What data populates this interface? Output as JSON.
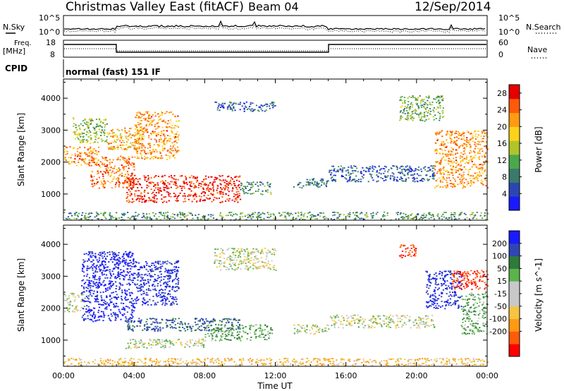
{
  "header": {
    "station": "Christmas Valley East (fitACF)",
    "beam": "Beam 04",
    "date": "12/Sep/2014"
  },
  "noise_panel": {
    "left_label": "N.Sky",
    "right_label": "N.Search",
    "left_ticks": [
      "10^5",
      "10^0"
    ],
    "right_ticks": [
      "10^5",
      "10^0"
    ]
  },
  "freq_panel": {
    "left_label_1": "Freq.",
    "left_label_2": "[MHz]",
    "right_label": "Nave",
    "left_ticks": [
      "18",
      "8"
    ],
    "right_ticks": [
      "60",
      "0"
    ]
  },
  "cpid_panel": {
    "label": "CPID",
    "mode": "normal (fast) 151 IF"
  },
  "colors": {
    "power_scale": [
      "#1a1aff",
      "#2b46b4",
      "#3a7a6a",
      "#4aa84a",
      "#b0c42a",
      "#ffd21a",
      "#ff9a12",
      "#ff5a0a",
      "#e60000"
    ],
    "velocity_scale": [
      "#ff0000",
      "#ff5a0a",
      "#ff9a12",
      "#f5c542",
      "#c8c8c8",
      "#c8c8c8",
      "#5ab44a",
      "#2e7a3a",
      "#2e46b4",
      "#1a1aff"
    ]
  },
  "chart_data": [
    {
      "type": "heatmap",
      "title": "",
      "xlabel": "Time UT",
      "ylabel": "Slant Range [km]",
      "x_ticks": [
        "00:00",
        "04:00",
        "08:00",
        "12:00",
        "16:00",
        "20:00",
        "00:00"
      ],
      "xlim_hours": [
        0,
        24
      ],
      "y_ticks": [
        1000,
        2000,
        3000,
        4000
      ],
      "ylim": [
        180,
        4600
      ],
      "colorbar": {
        "label": "Power [dB]",
        "ticks": [
          4,
          8,
          12,
          16,
          20,
          24,
          28
        ],
        "range": [
          0,
          30
        ]
      },
      "regions": [
        {
          "t0": 0.0,
          "t1": 2.0,
          "r0": 1900,
          "r1": 2500,
          "level": 22
        },
        {
          "t0": 0.5,
          "t1": 2.5,
          "r0": 2600,
          "r1": 3400,
          "level": 14
        },
        {
          "t0": 1.5,
          "t1": 4.0,
          "r0": 1200,
          "r1": 2200,
          "level": 24
        },
        {
          "t0": 2.5,
          "t1": 4.5,
          "r0": 2400,
          "r1": 3100,
          "level": 20
        },
        {
          "t0": 4.0,
          "t1": 6.5,
          "r0": 2100,
          "r1": 3600,
          "level": 22
        },
        {
          "t0": 3.5,
          "t1": 10.0,
          "r0": 750,
          "r1": 1600,
          "level": 28
        },
        {
          "t0": 10.0,
          "t1": 11.8,
          "r0": 1000,
          "r1": 1400,
          "level": 10
        },
        {
          "t0": 8.5,
          "t1": 12.0,
          "r0": 3600,
          "r1": 3900,
          "level": 6
        },
        {
          "t0": 13.0,
          "t1": 15.0,
          "r0": 1200,
          "r1": 1500,
          "level": 8
        },
        {
          "t0": 15.0,
          "t1": 21.0,
          "r0": 1400,
          "r1": 1900,
          "level": 6
        },
        {
          "t0": 19.0,
          "t1": 21.5,
          "r0": 3300,
          "r1": 4100,
          "level": 12
        },
        {
          "t0": 21.0,
          "t1": 24.0,
          "r0": 1200,
          "r1": 3000,
          "level": 22
        },
        {
          "t0": 0.0,
          "t1": 24.0,
          "r0": 200,
          "r1": 450,
          "level": 10
        }
      ]
    },
    {
      "type": "heatmap",
      "title": "",
      "xlabel": "Time UT",
      "ylabel": "Slant Range [km]",
      "x_ticks": [
        "00:00",
        "04:00",
        "08:00",
        "12:00",
        "16:00",
        "20:00",
        "00:00"
      ],
      "xlim_hours": [
        0,
        24
      ],
      "y_ticks": [
        1000,
        2000,
        3000,
        4000
      ],
      "ylim": [
        180,
        4600
      ],
      "colorbar": {
        "label": "Velocity [m s^-1]",
        "ticks": [
          "200",
          "100",
          "50",
          "15",
          "-15",
          "-50",
          "-100",
          "-200"
        ],
        "range": [
          -250,
          250
        ]
      },
      "regions": [
        {
          "t0": 0.0,
          "t1": 1.2,
          "r0": 1900,
          "r1": 2500,
          "level": 0
        },
        {
          "t0": 1.0,
          "t1": 4.0,
          "r0": 1600,
          "r1": 3800,
          "level": 220
        },
        {
          "t0": 4.0,
          "t1": 6.5,
          "r0": 2100,
          "r1": 3500,
          "level": 200
        },
        {
          "t0": 3.5,
          "t1": 10.0,
          "r0": 1300,
          "r1": 1700,
          "level": 110
        },
        {
          "t0": 3.5,
          "t1": 8.0,
          "r0": 750,
          "r1": 1050,
          "level": 0
        },
        {
          "t0": 8.0,
          "t1": 11.8,
          "r0": 1000,
          "r1": 1500,
          "level": 40
        },
        {
          "t0": 8.5,
          "t1": 12.0,
          "r0": 3200,
          "r1": 3900,
          "level": 0
        },
        {
          "t0": 13.0,
          "t1": 15.0,
          "r0": 1200,
          "r1": 1500,
          "level": 0
        },
        {
          "t0": 15.0,
          "t1": 21.0,
          "r0": 1400,
          "r1": 1800,
          "level": 0
        },
        {
          "t0": 19.0,
          "t1": 20.0,
          "r0": 3600,
          "r1": 4000,
          "level": -200
        },
        {
          "t0": 20.5,
          "t1": 22.5,
          "r0": 2000,
          "r1": 3200,
          "level": 200
        },
        {
          "t0": 22.5,
          "t1": 24.0,
          "r0": 1200,
          "r1": 2500,
          "level": 40
        },
        {
          "t0": 22.0,
          "t1": 24.0,
          "r0": 2600,
          "r1": 3200,
          "level": -200
        },
        {
          "t0": 0.0,
          "t1": 24.0,
          "r0": 200,
          "r1": 450,
          "level": -40
        }
      ]
    }
  ]
}
